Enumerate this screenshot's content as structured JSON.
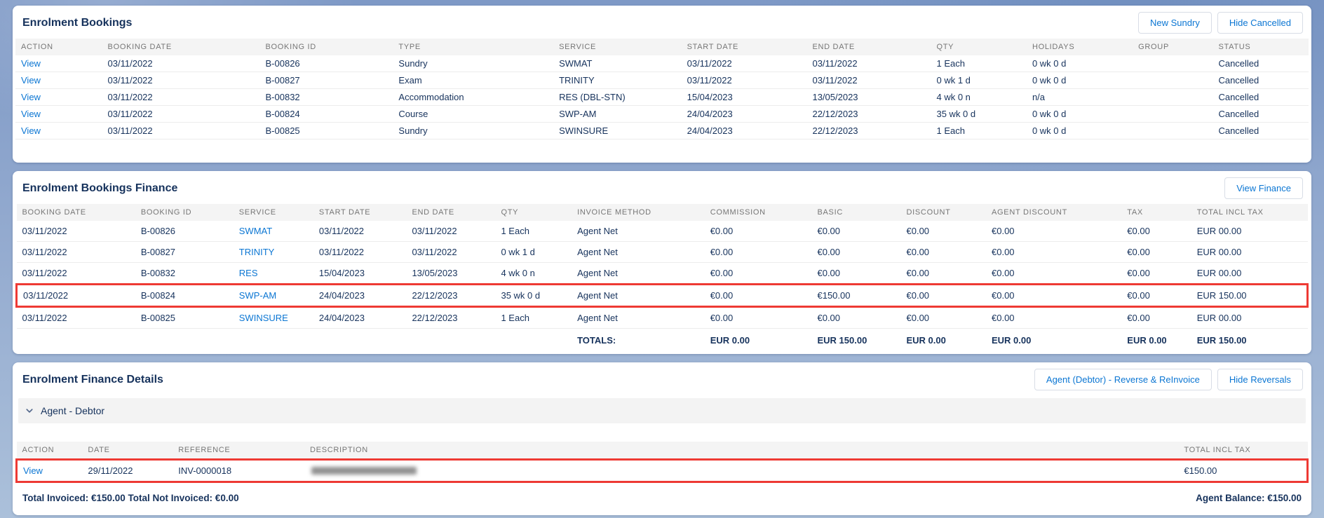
{
  "colors": {
    "accent": "#0b76d3",
    "navy": "#16325c",
    "highlight_red": "#ee3a34",
    "header_band": "#f4f4f4"
  },
  "bookings": {
    "title": "Enrolment Bookings",
    "new_sundry_label": "New Sundry",
    "hide_cancelled_label": "Hide Cancelled",
    "columns": [
      "ACTION",
      "BOOKING DATE",
      "BOOKING ID",
      "TYPE",
      "SERVICE",
      "START DATE",
      "END DATE",
      "QTY",
      "HOLIDAYS",
      "GROUP",
      "STATUS"
    ],
    "rows": [
      [
        "View",
        "03/11/2022",
        "B-00826",
        "Sundry",
        "SWMAT",
        "03/11/2022",
        "03/11/2022",
        "1 Each",
        "0 wk 0 d",
        "",
        "Cancelled"
      ],
      [
        "View",
        "03/11/2022",
        "B-00827",
        "Exam",
        "TRINITY",
        "03/11/2022",
        "03/11/2022",
        "0 wk 1 d",
        "0 wk 0 d",
        "",
        "Cancelled"
      ],
      [
        "View",
        "03/11/2022",
        "B-00832",
        "Accommodation",
        "RES (DBL-STN)",
        "15/04/2023",
        "13/05/2023",
        "4 wk 0 n",
        "n/a",
        "",
        "Cancelled"
      ],
      [
        "View",
        "03/11/2022",
        "B-00824",
        "Course",
        "SWP-AM",
        "24/04/2023",
        "22/12/2023",
        "35 wk 0 d",
        "0 wk 0 d",
        "",
        "Cancelled"
      ],
      [
        "View",
        "03/11/2022",
        "B-00825",
        "Sundry",
        "SWINSURE",
        "24/04/2023",
        "22/12/2023",
        "1 Each",
        "0 wk 0 d",
        "",
        "Cancelled"
      ]
    ]
  },
  "finance": {
    "title": "Enrolment Bookings Finance",
    "view_finance_label": "View Finance",
    "columns": [
      "BOOKING DATE",
      "BOOKING ID",
      "SERVICE",
      "START DATE",
      "END DATE",
      "QTY",
      "INVOICE METHOD",
      "COMMISSION",
      "BASIC",
      "DISCOUNT",
      "AGENT DISCOUNT",
      "TAX",
      "TOTAL INCL TAX"
    ],
    "rows": [
      [
        "03/11/2022",
        "B-00826",
        "SWMAT",
        "03/11/2022",
        "03/11/2022",
        "1 Each",
        "Agent Net",
        "€0.00",
        "€0.00",
        "€0.00",
        "€0.00",
        "€0.00",
        "EUR 00.00"
      ],
      [
        "03/11/2022",
        "B-00827",
        "TRINITY",
        "03/11/2022",
        "03/11/2022",
        "0 wk 1 d",
        "Agent Net",
        "€0.00",
        "€0.00",
        "€0.00",
        "€0.00",
        "€0.00",
        "EUR 00.00"
      ],
      [
        "03/11/2022",
        "B-00832",
        "RES",
        "15/04/2023",
        "13/05/2023",
        "4 wk 0 n",
        "Agent Net",
        "€0.00",
        "€0.00",
        "€0.00",
        "€0.00",
        "€0.00",
        "EUR 00.00"
      ],
      [
        "03/11/2022",
        "B-00824",
        "SWP-AM",
        "24/04/2023",
        "22/12/2023",
        "35 wk 0 d",
        "Agent Net",
        "€0.00",
        "€150.00",
        "€0.00",
        "€0.00",
        "€0.00",
        "EUR 150.00"
      ],
      [
        "03/11/2022",
        "B-00825",
        "SWINSURE",
        "24/04/2023",
        "22/12/2023",
        "1 Each",
        "Agent Net",
        "€0.00",
        "€0.00",
        "€0.00",
        "€0.00",
        "€0.00",
        "EUR 00.00"
      ]
    ],
    "highlight_row": 3,
    "totals": [
      "",
      "",
      "",
      "",
      "",
      "",
      "TOTALS:",
      "EUR 0.00",
      "EUR 150.00",
      "EUR 0.00",
      "EUR 0.00",
      "EUR 0.00",
      "EUR 150.00"
    ]
  },
  "details": {
    "title": "Enrolment Finance Details",
    "reverse_reinvoice_label": "Agent (Debtor) - Reverse & ReInvoice",
    "hide_reversals_label": "Hide Reversals",
    "group_label": "Agent - Debtor",
    "columns": [
      "ACTION",
      "DATE",
      "REFERENCE",
      "DESCRIPTION",
      "TOTAL INCL TAX"
    ],
    "rows": [
      [
        "View",
        "29/11/2022",
        "INV-0000018",
        "",
        "€150.00"
      ]
    ],
    "highlight_row": 0,
    "description_redacted": true,
    "total_invoiced_label": "Total Invoiced: €150.00 Total Not Invoiced: €0.00",
    "agent_balance_label": "Agent Balance: €150.00"
  }
}
